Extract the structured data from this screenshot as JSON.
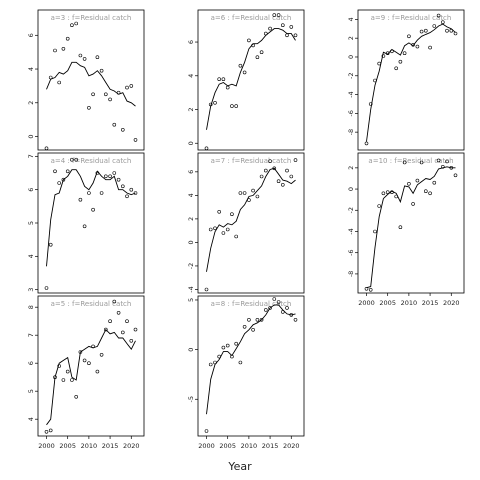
{
  "figure": {
    "xlabel": "Year"
  },
  "chart_data": [
    {
      "type": "line",
      "title": "a=3 : f=Residual catch",
      "xlim": [
        1998,
        2023
      ],
      "ylim": [
        -0.8,
        7.5
      ],
      "yticks": [
        "0",
        "2",
        "4",
        "6"
      ],
      "ytick_values": [
        0,
        2,
        4,
        6
      ],
      "xticks": [],
      "xtick_values": [],
      "x": [
        2000,
        2001,
        2002,
        2003,
        2004,
        2005,
        2006,
        2007,
        2008,
        2009,
        2010,
        2011,
        2012,
        2013,
        2014,
        2015,
        2016,
        2017,
        2018,
        2019,
        2020,
        2021
      ],
      "points": [
        -0.7,
        3.5,
        5.1,
        3.2,
        5.2,
        5.8,
        6.6,
        6.7,
        4.8,
        4.6,
        1.7,
        2.5,
        4.7,
        3.9,
        2.5,
        2.2,
        0.7,
        2.6,
        0.4,
        2.9,
        3.0,
        -0.2
      ],
      "fit": [
        2.8,
        3.4,
        3.5,
        3.8,
        3.7,
        3.9,
        4.4,
        4.4,
        4.2,
        4.1,
        3.6,
        3.7,
        3.9,
        3.6,
        3.2,
        2.8,
        2.7,
        2.5,
        2.6,
        2.1,
        2.0,
        1.8
      ]
    },
    {
      "type": "line",
      "title": "a=6 : f=Residual catch",
      "xlim": [
        1998,
        2023
      ],
      "ylim": [
        -0.4,
        7.9
      ],
      "yticks": [
        "0",
        "2",
        "4",
        "6"
      ],
      "ytick_values": [
        0,
        2,
        4,
        6
      ],
      "xticks": [],
      "xtick_values": [],
      "x": [
        2000,
        2001,
        2002,
        2003,
        2004,
        2005,
        2006,
        2007,
        2008,
        2009,
        2010,
        2011,
        2012,
        2013,
        2014,
        2015,
        2016,
        2017,
        2018,
        2019,
        2020,
        2021
      ],
      "points": [
        -0.3,
        2.3,
        2.4,
        3.8,
        3.8,
        3.3,
        2.2,
        2.2,
        4.6,
        4.2,
        6.1,
        5.8,
        5.1,
        5.4,
        6.5,
        6.8,
        7.6,
        7.6,
        7.0,
        6.4,
        6.9,
        6.4
      ],
      "fit": [
        0.8,
        2.2,
        3.0,
        3.5,
        3.6,
        3.4,
        3.5,
        3.4,
        4.2,
        4.8,
        5.6,
        5.9,
        5.9,
        6.1,
        6.4,
        6.6,
        6.8,
        6.8,
        6.7,
        6.5,
        6.5,
        6.1
      ]
    },
    {
      "type": "line",
      "title": "a=9 : f=Residual catch",
      "xlim": [
        1998,
        2023
      ],
      "ylim": [
        -9.9,
        5.0
      ],
      "yticks": [
        "-8",
        "-6",
        "-4",
        "-2",
        "0",
        "2",
        "4"
      ],
      "ytick_values": [
        -8,
        -6,
        -4,
        -2,
        0,
        2,
        4
      ],
      "xticks": [],
      "xtick_values": [],
      "x": [
        2000,
        2001,
        2002,
        2003,
        2004,
        2005,
        2006,
        2007,
        2008,
        2009,
        2010,
        2011,
        2012,
        2013,
        2014,
        2015,
        2016,
        2017,
        2018,
        2019,
        2020,
        2021
      ],
      "points": [
        -9.2,
        -5.0,
        -2.5,
        -0.7,
        0.1,
        0.4,
        0.6,
        -1.2,
        -0.5,
        0.4,
        2.2,
        1.3,
        1.1,
        2.7,
        2.8,
        1.0,
        3.3,
        4.4,
        3.7,
        2.8,
        2.8,
        2.5
      ],
      "fit": [
        -9.0,
        -5.6,
        -3.0,
        -1.5,
        0.5,
        0.3,
        0.8,
        0.5,
        0.2,
        1.2,
        1.5,
        1.2,
        1.8,
        2.2,
        2.4,
        2.6,
        2.9,
        3.3,
        3.5,
        3.2,
        3.0,
        2.6
      ]
    },
    {
      "type": "line",
      "title": "a=4 : f=Residual catch",
      "xlim": [
        1998,
        2023
      ],
      "ylim": [
        2.9,
        7.1
      ],
      "yticks": [
        "3",
        "4",
        "5",
        "6",
        "7"
      ],
      "ytick_values": [
        3,
        4,
        5,
        6,
        7
      ],
      "xticks": [],
      "xtick_values": [],
      "x": [
        2000,
        2001,
        2002,
        2003,
        2004,
        2005,
        2006,
        2007,
        2008,
        2009,
        2010,
        2011,
        2012,
        2013,
        2014,
        2015,
        2016,
        2017,
        2018,
        2019,
        2020,
        2021
      ],
      "points": [
        3.05,
        4.35,
        6.55,
        6.2,
        6.3,
        6.55,
        6.9,
        6.9,
        5.7,
        4.9,
        5.9,
        5.4,
        6.5,
        5.9,
        6.4,
        6.4,
        6.5,
        6.3,
        6.1,
        5.8,
        6.0,
        5.9
      ],
      "fit": [
        3.7,
        5.1,
        5.85,
        5.9,
        6.3,
        6.4,
        6.6,
        6.6,
        6.4,
        6.1,
        6.0,
        6.2,
        6.55,
        6.4,
        6.3,
        6.3,
        6.4,
        6.0,
        6.0,
        5.9,
        5.85,
        5.9
      ]
    },
    {
      "type": "line",
      "title": "a=7 : f=Residual catch",
      "xlim": [
        1998,
        2023
      ],
      "ylim": [
        -4.3,
        7.6
      ],
      "yticks": [
        "-4",
        "-2",
        "0",
        "2",
        "4",
        "6"
      ],
      "ytick_values": [
        -4,
        -2,
        0,
        2,
        4,
        6
      ],
      "xticks": [],
      "xtick_values": [],
      "x": [
        2000,
        2001,
        2002,
        2003,
        2004,
        2005,
        2006,
        2007,
        2008,
        2009,
        2010,
        2011,
        2012,
        2013,
        2014,
        2015,
        2016,
        2017,
        2018,
        2019,
        2020,
        2021
      ],
      "points": [
        -4.0,
        1.1,
        1.2,
        2.6,
        0.8,
        1.1,
        2.4,
        0.5,
        4.2,
        4.2,
        3.6,
        4.4,
        3.9,
        5.6,
        6.1,
        6.9,
        6.3,
        5.2,
        4.9,
        6.1,
        5.6,
        7.0
      ],
      "fit": [
        -2.5,
        -0.5,
        0.9,
        1.5,
        1.3,
        1.6,
        1.5,
        1.8,
        2.8,
        3.2,
        3.9,
        4.0,
        4.4,
        4.8,
        5.6,
        6.2,
        6.3,
        5.8,
        5.3,
        5.2,
        5.0,
        5.3
      ]
    },
    {
      "type": "line",
      "title": "a=10 : f=Residual catch",
      "xlim": [
        1998,
        2023
      ],
      "ylim": [
        -9.8,
        3.4
      ],
      "yticks": [
        "-8",
        "-6",
        "-4",
        "-2",
        "0",
        "2"
      ],
      "ytick_values": [
        -8,
        -6,
        -4,
        -2,
        0,
        2
      ],
      "xticks": [
        "2000",
        "2005",
        "2010",
        "2015",
        "2020"
      ],
      "xtick_values": [
        2000,
        2005,
        2010,
        2015,
        2020
      ],
      "x": [
        2000,
        2001,
        2002,
        2003,
        2004,
        2005,
        2006,
        2007,
        2008,
        2009,
        2010,
        2011,
        2012,
        2013,
        2014,
        2015,
        2016,
        2017,
        2018,
        2019,
        2020,
        2021
      ],
      "points": [
        -9.4,
        -9.5,
        -4.0,
        -1.6,
        -0.4,
        -0.3,
        -0.3,
        -0.7,
        -3.6,
        2.5,
        0.5,
        -1.4,
        0.8,
        2.5,
        -0.2,
        -0.4,
        0.6,
        2.7,
        2.1,
        2.6,
        2.0,
        1.3
      ],
      "fit": [
        -9.3,
        -9.2,
        -5.5,
        -2.6,
        -0.9,
        -0.5,
        -0.2,
        -0.4,
        -1.2,
        0.3,
        0.2,
        -0.4,
        0.4,
        0.7,
        1.0,
        0.9,
        1.2,
        1.9,
        2.0,
        2.1,
        2.0,
        2.0
      ]
    },
    {
      "type": "line",
      "title": "a=5 : f=Residual catch",
      "xlim": [
        1998,
        2023
      ],
      "ylim": [
        3.4,
        8.4
      ],
      "yticks": [
        "4",
        "5",
        "6",
        "7",
        "8"
      ],
      "ytick_values": [
        4,
        5,
        6,
        7,
        8
      ],
      "xticks": [
        "2000",
        "2005",
        "2010",
        "2015",
        "2020"
      ],
      "xtick_values": [
        2000,
        2005,
        2010,
        2015,
        2020
      ],
      "x": [
        2000,
        2001,
        2002,
        2003,
        2004,
        2005,
        2006,
        2007,
        2008,
        2009,
        2010,
        2011,
        2012,
        2013,
        2014,
        2015,
        2016,
        2017,
        2018,
        2019,
        2020,
        2021
      ],
      "points": [
        3.55,
        3.6,
        5.5,
        5.9,
        5.4,
        5.7,
        5.4,
        4.8,
        6.4,
        6.1,
        6.0,
        6.6,
        5.7,
        6.3,
        7.2,
        7.5,
        8.2,
        7.8,
        7.1,
        7.5,
        6.8,
        7.2
      ],
      "fit": [
        3.8,
        4.0,
        5.5,
        6.0,
        6.1,
        6.2,
        5.5,
        5.4,
        6.4,
        6.5,
        6.6,
        6.55,
        6.6,
        6.9,
        7.2,
        7.05,
        7.1,
        6.9,
        6.9,
        6.7,
        6.5,
        6.8
      ]
    },
    {
      "type": "line",
      "title": "a=8 : f=Residual catch",
      "xlim": [
        1998,
        2023
      ],
      "ylim": [
        -8.7,
        5.4
      ],
      "yticks": [
        "-5",
        "0",
        "5"
      ],
      "ytick_values": [
        -5,
        0,
        5
      ],
      "xticks": [
        "2000",
        "2005",
        "2010",
        "2015",
        "2020"
      ],
      "xtick_values": [
        2000,
        2005,
        2010,
        2015,
        2020
      ],
      "x": [
        2000,
        2001,
        2002,
        2003,
        2004,
        2005,
        2006,
        2007,
        2008,
        2009,
        2010,
        2011,
        2012,
        2013,
        2014,
        2015,
        2016,
        2017,
        2018,
        2019,
        2020,
        2021
      ],
      "points": [
        -8.2,
        -1.5,
        -1.3,
        -0.7,
        0.2,
        0.4,
        -0.7,
        0.6,
        -1.3,
        2.3,
        3.0,
        2.0,
        3.0,
        3.0,
        4.0,
        4.2,
        5.1,
        4.8,
        3.8,
        4.2,
        3.5,
        3.0
      ],
      "fit": [
        -6.5,
        -3.0,
        -1.5,
        -1.0,
        -0.2,
        -0.2,
        -0.6,
        0.1,
        0.8,
        1.6,
        2.0,
        2.5,
        2.7,
        3.0,
        3.5,
        4.2,
        4.5,
        4.5,
        4.0,
        3.6,
        3.5,
        3.6
      ]
    }
  ]
}
